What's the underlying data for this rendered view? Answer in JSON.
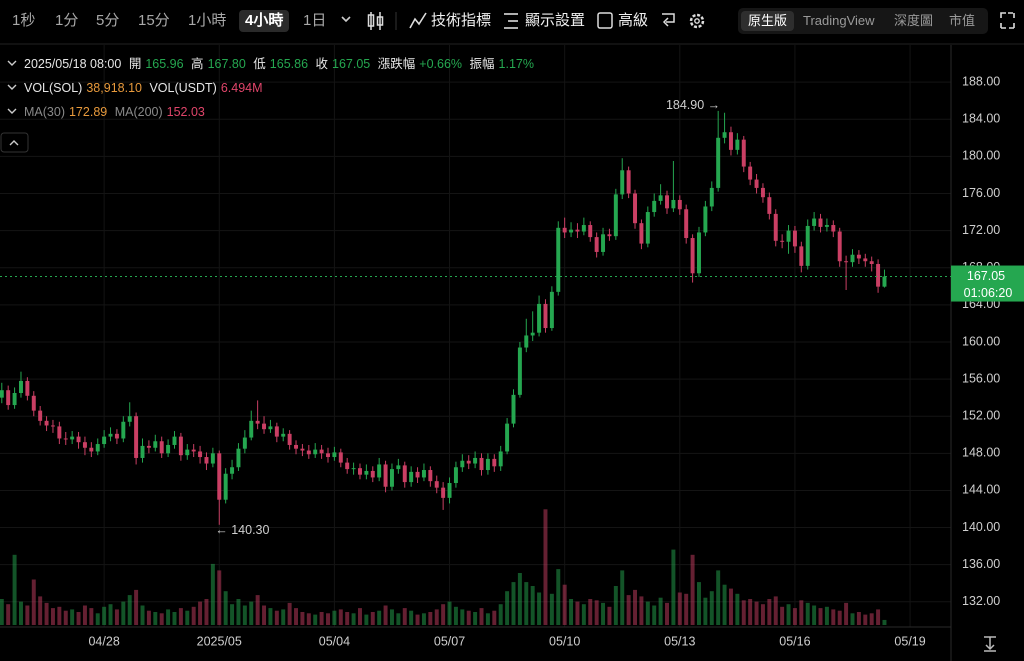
{
  "toolbar": {
    "intervals": [
      "1秒",
      "1分",
      "5分",
      "15分",
      "1小時",
      "4小時",
      "1日"
    ],
    "active_interval": "4小時",
    "tools": [
      "技術指標",
      "顯示設置",
      "高級"
    ],
    "views": [
      "原生版",
      "TradingView",
      "深度圖",
      "市值"
    ],
    "active_view": "原生版"
  },
  "legend": {
    "time": "2025/05/18 08:00",
    "open_label": "開",
    "open": "165.96",
    "high_label": "高",
    "high": "167.80",
    "low_label": "低",
    "low": "165.86",
    "close_label": "收",
    "close": "167.05",
    "change_label": "漲跌幅",
    "change": "+0.66%",
    "amplitude_label": "振幅",
    "amplitude": "1.17%",
    "vol_sol_label": "VOL(SOL)",
    "vol_sol": "38,918.10",
    "vol_usdt_label": "VOL(USDT)",
    "vol_usdt": "6.494M",
    "ma30_label": "MA(30)",
    "ma30": "172.89",
    "ma200_label": "MA(200)",
    "ma200": "152.03"
  },
  "chart_data": {
    "type": "candlestick",
    "up_color": "#25a750",
    "down_color": "#ca3f64",
    "grid": true,
    "xlim": [
      -0.28,
      148.4
    ],
    "xticks": [
      {
        "value": 16,
        "label": "04/28"
      },
      {
        "value": 34,
        "label": "2025/05"
      },
      {
        "value": 52,
        "label": "05/04"
      },
      {
        "value": 70,
        "label": "05/07"
      },
      {
        "value": 88,
        "label": "05/10"
      },
      {
        "value": 106,
        "label": "05/13"
      },
      {
        "value": 124,
        "label": "05/16"
      },
      {
        "value": 142,
        "label": "05/19"
      }
    ],
    "ylim": [
      129.5,
      192
    ],
    "yticks": [
      {
        "value": 132,
        "label": "132.00"
      },
      {
        "value": 136,
        "label": "136.00"
      },
      {
        "value": 140,
        "label": "140.00"
      },
      {
        "value": 144,
        "label": "144.00"
      },
      {
        "value": 148,
        "label": "148.00"
      },
      {
        "value": 152,
        "label": "152.00"
      },
      {
        "value": 156,
        "label": "156.00"
      },
      {
        "value": 160,
        "label": "160.00"
      },
      {
        "value": 164,
        "label": "164.00"
      },
      {
        "value": 168,
        "label": "168.00"
      },
      {
        "value": 172,
        "label": "172.00"
      },
      {
        "value": 176,
        "label": "176.00"
      },
      {
        "value": 180,
        "label": "180.00"
      },
      {
        "value": 184,
        "label": "184.00"
      },
      {
        "value": 188,
        "label": "188.00"
      }
    ],
    "volume_ylim": [
      0,
      1000000
    ],
    "last_price_label": "167.05",
    "countdown": "01:06:20",
    "max_label": "184.90 →",
    "min_label": "← 140.30",
    "open": [
      154,
      154.8,
      153.2,
      154.5,
      155.8,
      154.2,
      152.6,
      151.5,
      151.0,
      150.9,
      149.6,
      149.5,
      149.8,
      149.2,
      148.6,
      148.2,
      149.0,
      149.8,
      150.1,
      149.6,
      151.4,
      152.0,
      147.5,
      148.8,
      148.6,
      149.3,
      148.0,
      148.9,
      149.8,
      147.8,
      148.4,
      148.2,
      147.6,
      146.9,
      148.0,
      143.0,
      145.8,
      146.5,
      148.5,
      149.7,
      151.5,
      151.2,
      150.6,
      150.9,
      149.8,
      150.1,
      148.9,
      148.5,
      148.3,
      147.9,
      148.4,
      148.0,
      147.6,
      148.1,
      147.0,
      146.3,
      146.4,
      145.7,
      146.1,
      145.4,
      146.8,
      144.4,
      146.3,
      146.7,
      144.9,
      146.0,
      145.4,
      146.2,
      145.0,
      144.3,
      143.2,
      144.8,
      146.5,
      147.2,
      146.9,
      147.5,
      146.2,
      147.4,
      146.6,
      148.2,
      151.2,
      154.3,
      159.4,
      160.7,
      161.0,
      164.1,
      161.5,
      165.4,
      172.3,
      171.8,
      172.1,
      171.9,
      172.6,
      171.3,
      169.7,
      171.6,
      171.4,
      175.9,
      178.5,
      176.0,
      172.8,
      170.6,
      174.0,
      175.2,
      175.8,
      174.4,
      175.3,
      174.3,
      171.2,
      167.4,
      171.8,
      174.6,
      176.6,
      182.0,
      182.6,
      180.7,
      181.8,
      178.9,
      177.5,
      176.6,
      175.6,
      173.8,
      170.9,
      170.8,
      172.0,
      170.3,
      168.2,
      172.5,
      173.3,
      172.4,
      172.6,
      171.9,
      168.7,
      168.6,
      169.4,
      169.0,
      168.7,
      168.4,
      165.96
    ],
    "high": [
      155.6,
      155.3,
      155.1,
      156.8,
      156.2,
      154.7,
      153.1,
      152.0,
      151.6,
      151.4,
      150.3,
      150.4,
      150.3,
      149.8,
      149.2,
      149.6,
      150.5,
      150.8,
      150.6,
      152.0,
      153.5,
      152.4,
      149.6,
      149.4,
      150.0,
      149.8,
      149.5,
      150.4,
      150.2,
      149.0,
      149.0,
      148.8,
      148.1,
      148.6,
      148.3,
      146.4,
      147.3,
      149.1,
      150.5,
      152.6,
      153.7,
      152.0,
      151.6,
      151.3,
      150.7,
      150.5,
      149.4,
      149.0,
      148.9,
      149.1,
      148.9,
      148.6,
      148.7,
      148.5,
      147.5,
      147.0,
      146.9,
      146.8,
      146.6,
      147.5,
      147.2,
      146.9,
      147.4,
      147.1,
      146.6,
      146.5,
      146.9,
      146.6,
      145.6,
      144.9,
      145.4,
      147.1,
      147.9,
      147.8,
      148.2,
      148.0,
      148.0,
      147.9,
      148.8,
      151.8,
      154.9,
      160.0,
      162.5,
      163.3,
      165.0,
      164.6,
      166.0,
      173.0,
      173.4,
      172.9,
      172.8,
      173.4,
      173.0,
      171.8,
      172.3,
      172.2,
      176.5,
      179.8,
      178.9,
      176.4,
      173.2,
      174.6,
      176.0,
      177.0,
      176.3,
      179.5,
      175.8,
      174.8,
      171.6,
      172.4,
      175.2,
      177.3,
      184.9,
      184.7,
      183.2,
      182.5,
      182.2,
      179.4,
      178.1,
      177.1,
      176.1,
      174.3,
      171.6,
      172.6,
      172.5,
      170.8,
      173.2,
      174.0,
      173.8,
      173.3,
      173.1,
      172.3,
      169.3,
      170.0,
      169.9,
      169.5,
      169.2,
      168.9,
      167.8
    ],
    "low": [
      153.4,
      152.7,
      152.8,
      154.0,
      153.7,
      152.0,
      151.0,
      150.4,
      150.2,
      149.0,
      148.9,
      149.0,
      148.5,
      147.8,
      147.6,
      147.8,
      148.6,
      149.3,
      149.0,
      149.2,
      150.9,
      146.8,
      147.0,
      148.0,
      148.2,
      147.5,
      147.6,
      148.5,
      147.2,
      147.3,
      147.6,
      146.9,
      146.2,
      146.5,
      140.3,
      142.6,
      145.2,
      146.1,
      148.0,
      149.4,
      150.6,
      150.1,
      150.2,
      149.2,
      149.3,
      148.4,
      147.9,
      147.7,
      147.4,
      147.5,
      147.4,
      147.0,
      147.2,
      146.5,
      145.8,
      145.7,
      145.2,
      145.2,
      144.9,
      145.0,
      143.8,
      144.0,
      145.8,
      144.3,
      144.4,
      144.8,
      145.0,
      144.4,
      143.7,
      141.9,
      142.6,
      144.3,
      146.0,
      146.3,
      146.4,
      145.6,
      145.7,
      146.0,
      146.1,
      147.9,
      150.8,
      154.0,
      158.9,
      160.1,
      160.6,
      161.0,
      161.2,
      165.0,
      171.2,
      171.3,
      171.2,
      171.5,
      170.8,
      169.1,
      169.3,
      170.9,
      171.0,
      175.4,
      175.5,
      172.2,
      170.0,
      170.2,
      173.5,
      174.8,
      173.8,
      174.0,
      173.7,
      170.6,
      166.4,
      167.0,
      171.4,
      174.1,
      176.2,
      181.4,
      180.1,
      180.2,
      178.3,
      176.9,
      176.0,
      175.0,
      173.2,
      170.3,
      170.1,
      169.5,
      169.6,
      167.5,
      167.8,
      172.0,
      171.8,
      171.9,
      171.3,
      168.1,
      165.6,
      168.1,
      168.4,
      168.1,
      167.6,
      165.3,
      165.86
    ],
    "close": [
      154.8,
      153.2,
      154.5,
      155.8,
      154.2,
      152.6,
      151.5,
      151.0,
      150.9,
      149.6,
      149.5,
      149.8,
      149.2,
      148.6,
      148.2,
      149.0,
      149.8,
      150.1,
      149.6,
      151.4,
      152.0,
      147.5,
      148.8,
      148.6,
      149.3,
      148.0,
      148.9,
      149.8,
      147.8,
      148.4,
      148.2,
      147.6,
      146.9,
      148.0,
      143.0,
      145.8,
      146.5,
      148.5,
      149.7,
      151.5,
      151.2,
      150.6,
      150.9,
      149.8,
      150.1,
      148.9,
      148.5,
      148.3,
      147.9,
      148.4,
      148.0,
      147.6,
      148.1,
      147.0,
      146.3,
      146.4,
      145.7,
      146.1,
      145.4,
      146.8,
      144.4,
      146.3,
      146.7,
      144.9,
      146.0,
      145.4,
      146.2,
      145.0,
      144.3,
      143.2,
      144.8,
      146.5,
      147.2,
      146.9,
      147.5,
      146.2,
      147.4,
      146.6,
      148.2,
      151.2,
      154.3,
      159.4,
      160.7,
      161.0,
      164.1,
      161.5,
      165.4,
      172.3,
      171.8,
      172.1,
      171.9,
      172.6,
      171.3,
      169.7,
      171.6,
      171.4,
      175.9,
      178.5,
      176.0,
      172.8,
      170.6,
      174.0,
      175.2,
      175.8,
      174.4,
      175.3,
      174.3,
      171.2,
      167.4,
      171.8,
      174.6,
      176.6,
      182.0,
      182.6,
      180.7,
      181.8,
      178.9,
      177.5,
      176.6,
      175.6,
      173.8,
      170.9,
      170.8,
      172.0,
      170.3,
      168.2,
      172.5,
      173.3,
      172.4,
      172.6,
      171.9,
      168.7,
      168.6,
      169.4,
      169.0,
      168.7,
      168.4,
      165.96,
      167.05
    ],
    "volume": [
      200000,
      160000,
      540000,
      180000,
      150000,
      350000,
      220000,
      170000,
      130000,
      140000,
      110000,
      120000,
      100000,
      150000,
      130000,
      90000,
      140000,
      160000,
      120000,
      180000,
      230000,
      270000,
      150000,
      110000,
      100000,
      90000,
      120000,
      100000,
      130000,
      110000,
      140000,
      180000,
      200000,
      470000,
      420000,
      260000,
      160000,
      200000,
      150000,
      180000,
      230000,
      150000,
      130000,
      110000,
      120000,
      170000,
      130000,
      100000,
      90000,
      80000,
      100000,
      90000,
      110000,
      120000,
      100000,
      90000,
      130000,
      80000,
      100000,
      110000,
      150000,
      120000,
      90000,
      130000,
      110000,
      80000,
      90000,
      100000,
      120000,
      160000,
      180000,
      140000,
      120000,
      110000,
      100000,
      130000,
      90000,
      110000,
      160000,
      260000,
      330000,
      400000,
      330000,
      300000,
      250000,
      890000,
      240000,
      430000,
      310000,
      200000,
      180000,
      160000,
      200000,
      190000,
      170000,
      140000,
      300000,
      420000,
      230000,
      270000,
      220000,
      180000,
      150000,
      210000,
      170000,
      580000,
      250000,
      240000,
      540000,
      330000,
      210000,
      260000,
      420000,
      310000,
      280000,
      240000,
      190000,
      200000,
      180000,
      160000,
      200000,
      220000,
      140000,
      160000,
      130000,
      190000,
      170000,
      150000,
      130000,
      140000,
      120000,
      110000,
      170000,
      90000,
      100000,
      80000,
      90000,
      120000,
      38918.1
    ]
  }
}
